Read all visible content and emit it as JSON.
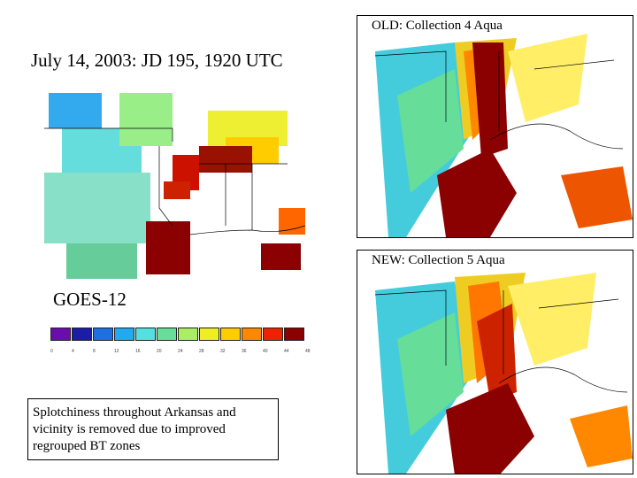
{
  "title": "July 14, 2003: JD 195, 1920 UTC",
  "goes_label": "GOES-12",
  "old_label": "OLD: Collection 4 Aqua",
  "new_label": "NEW: Collection 5 Aqua",
  "note": "Splotchiness throughout Arkansas and vicinity is removed due to improved regrouped BT zones",
  "colorbar": {
    "colors": [
      "#6a0dad",
      "#1c1ca8",
      "#1f6fe0",
      "#22aaee",
      "#55e0e0",
      "#66dd99",
      "#aaee66",
      "#eeee22",
      "#ffcc00",
      "#ff8800",
      "#ee2200",
      "#8b0000"
    ],
    "ticks": [
      "0",
      "4",
      "8",
      "12",
      "16",
      "20",
      "24",
      "28",
      "32",
      "36",
      "40",
      "44",
      "48"
    ]
  }
}
